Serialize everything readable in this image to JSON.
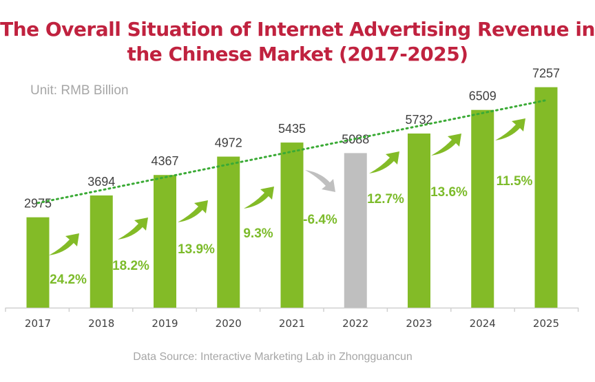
{
  "chart_data": {
    "type": "bar",
    "title_lines": [
      "The Overall Situation of Internet Advertising Revenue in",
      "the Chinese Market (2017-2025)"
    ],
    "unit": "Unit: RMB Billion",
    "source": "Data Source:  Interactive Marketing Lab in Zhongguancun",
    "categories": [
      "2017",
      "2018",
      "2019",
      "2020",
      "2021",
      "2022",
      "2023",
      "2024",
      "2025"
    ],
    "values": [
      2975,
      3694,
      4367,
      4972,
      5435,
      5088,
      5732,
      6509,
      7257
    ],
    "value_labels": [
      "2975",
      "3694",
      "4367",
      "4972",
      "5435",
      "5088",
      "5732",
      "6509",
      "7257"
    ],
    "growth_labels": [
      "24.2%",
      "18.2%",
      "13.9%",
      "9.3%",
      "-6.4%",
      "12.7%",
      "13.6%",
      "11.5%"
    ],
    "growth": [
      24.2,
      18.2,
      13.9,
      9.3,
      -6.4,
      12.7,
      13.6,
      11.5
    ],
    "highlight_category": "2022",
    "trendline": "linear, dotted",
    "ylim": [
      0,
      7500
    ],
    "grid": false,
    "colors": {
      "bar": "#83bb27",
      "bar_highlight": "#bfbfbf",
      "growth_text": "#7cbb2a",
      "trend": "#3aaa35",
      "title": "#c0223f"
    }
  }
}
